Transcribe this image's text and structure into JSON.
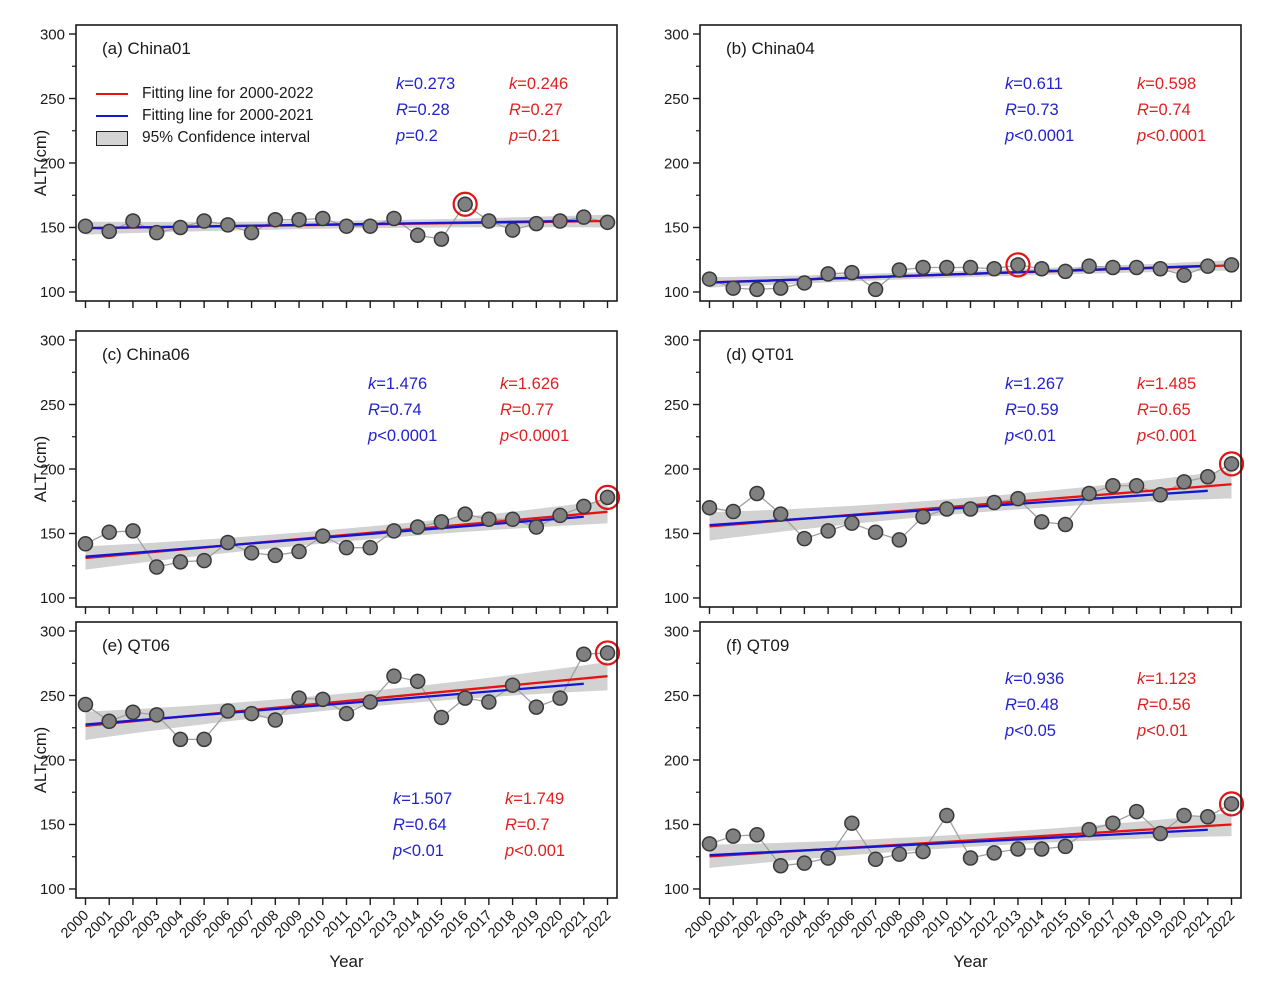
{
  "figure": {
    "ylabel": "ALT (cm)",
    "xlabel": "Year",
    "y_ticks": [
      100,
      150,
      200,
      250,
      300
    ],
    "y_minor_ticks": [
      125,
      175,
      225,
      275
    ],
    "years": [
      2000,
      2001,
      2002,
      2003,
      2004,
      2005,
      2006,
      2007,
      2008,
      2009,
      2010,
      2011,
      2012,
      2013,
      2014,
      2015,
      2016,
      2017,
      2018,
      2019,
      2020,
      2021,
      2022
    ],
    "ylim": [
      93,
      307
    ],
    "xlim": [
      1999.6,
      2022.4
    ],
    "legend": [
      "Fitting line for 2000-2022",
      "Fitting line for 2000-2021",
      "95% Confidence interval"
    ],
    "colors": {
      "fit_2000_2022": "#e41414",
      "fit_2000_2021": "#1515d6",
      "stats_blue_text": "#2222cf",
      "stats_red_text": "#e01f1f",
      "point_fill": "#808080",
      "point_edge": "#383838",
      "connector": "#a0a0a0",
      "ci_band": "#d2d2d2",
      "axis": "#1a1a1a"
    }
  },
  "chart_data": [
    {
      "type": "scatter",
      "title": "(a) China01",
      "values": [
        151,
        147,
        155,
        146,
        150,
        155,
        152,
        146,
        156,
        156,
        157,
        151,
        151,
        157,
        144,
        141,
        168,
        155,
        148,
        153,
        155,
        158,
        154
      ],
      "fit_red": {
        "y2000": 149.5,
        "y2022": 155.0
      },
      "fit_blue": {
        "y2000": 149.5,
        "y2021": 155.2
      },
      "ci_halfwidth": {
        "mid": 3,
        "end": 5
      },
      "circled_year": 2016,
      "stats_2000_2021": [
        "k=0.273",
        "R=0.28",
        "p=0.2"
      ],
      "stats_2000_2022": [
        "k=0.246",
        "R=0.27",
        "p=0.21"
      ]
    },
    {
      "type": "scatter",
      "title": "(b) China04",
      "values": [
        110,
        103,
        102,
        103,
        107,
        114,
        115,
        102,
        117,
        119,
        119,
        119,
        118,
        121,
        118,
        116,
        120,
        119,
        119,
        118,
        113,
        120,
        121
      ],
      "fit_red": {
        "y2000": 107.4,
        "y2022": 120.6
      },
      "fit_blue": {
        "y2000": 107.3,
        "y2021": 120.3
      },
      "ci_halfwidth": {
        "mid": 2.5,
        "end": 4
      },
      "circled_year": 2013,
      "stats_2000_2021": [
        "k=0.611",
        "R=0.73",
        "p<0.0001"
      ],
      "stats_2000_2022": [
        "k=0.598",
        "R=0.74",
        "p<0.0001"
      ]
    },
    {
      "type": "scatter",
      "title": "(c) China06",
      "values": [
        142,
        151,
        152,
        124,
        128,
        129,
        143,
        135,
        133,
        136,
        148,
        139,
        139,
        152,
        155,
        159,
        165,
        161,
        161,
        155,
        164,
        171,
        178
      ],
      "fit_red": {
        "y2000": 131.0,
        "y2022": 166.8
      },
      "fit_blue": {
        "y2000": 132.0,
        "y2021": 163.0
      },
      "ci_halfwidth": {
        "mid": 5,
        "end": 9
      },
      "circled_year": 2022,
      "stats_2000_2021": [
        "k=1.476",
        "R=0.74",
        "p<0.0001"
      ],
      "stats_2000_2022": [
        "k=1.626",
        "R=0.77",
        "p<0.0001"
      ]
    },
    {
      "type": "scatter",
      "title": "(d) QT01",
      "values": [
        170,
        167,
        181,
        165,
        146,
        152,
        158,
        151,
        145,
        163,
        169,
        169,
        174,
        177,
        159,
        157,
        181,
        187,
        187,
        180,
        190,
        194,
        204
      ],
      "fit_red": {
        "y2000": 155.5,
        "y2022": 188.2
      },
      "fit_blue": {
        "y2000": 156.5,
        "y2021": 183.1
      },
      "ci_halfwidth": {
        "mid": 6,
        "end": 11
      },
      "circled_year": 2022,
      "stats_2000_2021": [
        "k=1.267",
        "R=0.59",
        "p<0.01"
      ],
      "stats_2000_2022": [
        "k=1.485",
        "R=0.65",
        "p<0.001"
      ]
    },
    {
      "type": "scatter",
      "title": "(e) QT06",
      "values": [
        243,
        230,
        237,
        235,
        216,
        216,
        238,
        236,
        231,
        248,
        247,
        236,
        245,
        265,
        261,
        233,
        248,
        245,
        258,
        241,
        248,
        282,
        283
      ],
      "fit_red": {
        "y2000": 226.5,
        "y2022": 265.0
      },
      "fit_blue": {
        "y2000": 227.5,
        "y2021": 259.1
      },
      "ci_halfwidth": {
        "mid": 6,
        "end": 11
      },
      "circled_year": 2022,
      "stats_2000_2021": [
        "k=1.507",
        "R=0.64",
        "p<0.01"
      ],
      "stats_2000_2022": [
        "k=1.749",
        "R=0.7",
        "p<0.001"
      ]
    },
    {
      "type": "scatter",
      "title": "(f) QT09",
      "values": [
        135,
        141,
        142,
        118,
        120,
        124,
        151,
        123,
        127,
        129,
        157,
        124,
        128,
        131,
        131,
        133,
        146,
        151,
        160,
        143,
        157,
        156,
        166
      ],
      "fit_red": {
        "y2000": 125.3,
        "y2022": 150.0
      },
      "fit_blue": {
        "y2000": 126.2,
        "y2021": 145.9
      },
      "ci_halfwidth": {
        "mid": 5,
        "end": 9
      },
      "circled_year": 2022,
      "stats_2000_2021": [
        "k=0.936",
        "R=0.48",
        "p<0.05"
      ],
      "stats_2000_2022": [
        "k=1.123",
        "R=0.56",
        "p<0.01"
      ]
    }
  ]
}
